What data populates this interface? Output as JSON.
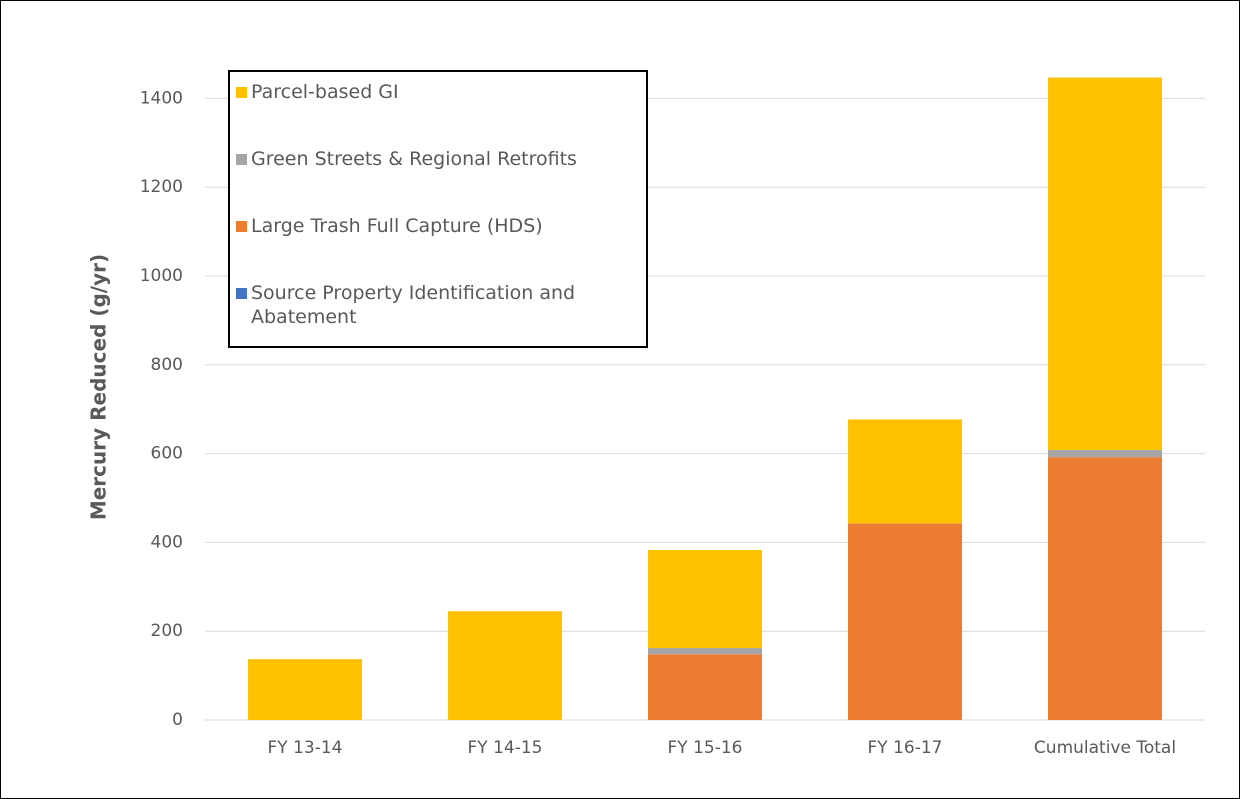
{
  "chart_data": {
    "type": "bar",
    "stacked": true,
    "y_label": "Mercury Reduced  (g/yr)",
    "categories": [
      "FY 13-14",
      "FY 14-15",
      "FY 15-16",
      "FY 16-17",
      "Cumulative Total"
    ],
    "series": [
      {
        "name": "Parcel-based GI",
        "color": "#ffc000",
        "values": [
          137,
          245,
          221,
          234,
          839
        ]
      },
      {
        "name": "Green Streets & Regional Retrofits",
        "color": "#a5a5a5",
        "values": [
          0,
          0,
          14,
          0,
          16
        ]
      },
      {
        "name": "Large Trash Full Capture (HDS)",
        "color": "#ed7d31",
        "values": [
          0,
          0,
          148,
          443,
          592
        ]
      },
      {
        "name": "Source Property Identification and Abatement",
        "color": "#4472c4",
        "values": [
          0,
          0,
          0,
          0,
          0
        ]
      }
    ],
    "ylim": [
      0,
      1500
    ],
    "yticks": [
      0,
      200,
      400,
      600,
      800,
      1000,
      1200,
      1400
    ],
    "grid": true,
    "legend": "top-left"
  }
}
